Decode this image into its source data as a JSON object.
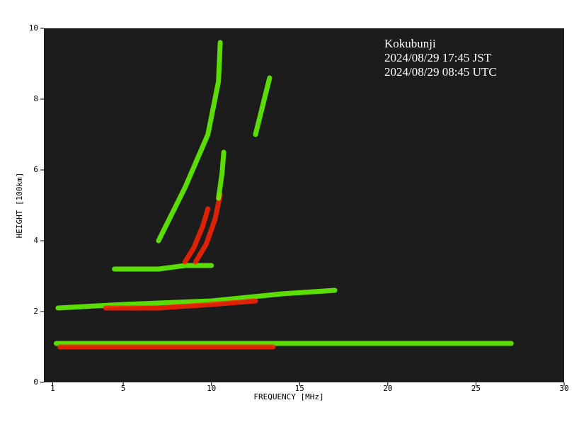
{
  "chart_data": {
    "type": "ionogram",
    "annotations": [
      "Kokubunji",
      "2024/08/29 17:45 JST",
      "2024/08/29 08:45 UTC"
    ],
    "x_label": "FREQUENCY [MHz]",
    "y_label": "HEIGHT [100km]",
    "xlim": [
      0.5,
      30
    ],
    "xticks": [
      1,
      5,
      10,
      15,
      20,
      25,
      30
    ],
    "ylim": [
      0,
      10
    ],
    "yticks": [
      0,
      2,
      4,
      6,
      8,
      10
    ],
    "background": "#1c1c1c",
    "traces": [
      {
        "color": "#66ff00",
        "x": [
          1.2,
          5,
          10,
          15,
          20,
          27
        ],
        "y": [
          1.1,
          1.1,
          1.1,
          1.1,
          1.1,
          1.1
        ]
      },
      {
        "color": "#ff2200",
        "x": [
          1.4,
          5,
          10,
          13.5
        ],
        "y": [
          1.0,
          1.0,
          1.0,
          1.0
        ]
      },
      {
        "color": "#66ff00",
        "x": [
          1.3,
          5,
          10,
          14,
          17
        ],
        "y": [
          2.1,
          2.2,
          2.3,
          2.5,
          2.6
        ]
      },
      {
        "color": "#ff2200",
        "x": [
          4,
          7,
          10,
          12.5
        ],
        "y": [
          2.1,
          2.1,
          2.2,
          2.3
        ]
      },
      {
        "color": "#66ff00",
        "x": [
          4.5,
          7,
          8.5,
          10
        ],
        "y": [
          3.2,
          3.2,
          3.3,
          3.3
        ]
      },
      {
        "color": "#ff2200",
        "x": [
          8.5,
          9,
          9.5,
          9.8
        ],
        "y": [
          3.4,
          3.8,
          4.4,
          4.9
        ]
      },
      {
        "color": "#ff2200",
        "x": [
          9.1,
          9.7,
          10.2,
          10.5
        ],
        "y": [
          3.4,
          3.9,
          4.6,
          5.3
        ]
      },
      {
        "color": "#66ff00",
        "x": [
          10.4,
          10.6,
          10.7
        ],
        "y": [
          5.2,
          5.9,
          6.5
        ]
      },
      {
        "color": "#66ff00",
        "x": [
          7,
          8.5,
          9.8,
          10.4,
          10.5
        ],
        "y": [
          4.0,
          5.5,
          7.0,
          8.5,
          9.6
        ]
      },
      {
        "color": "#66ff00",
        "x": [
          12.5,
          13,
          13.3
        ],
        "y": [
          7.0,
          8.0,
          8.6
        ]
      }
    ]
  }
}
